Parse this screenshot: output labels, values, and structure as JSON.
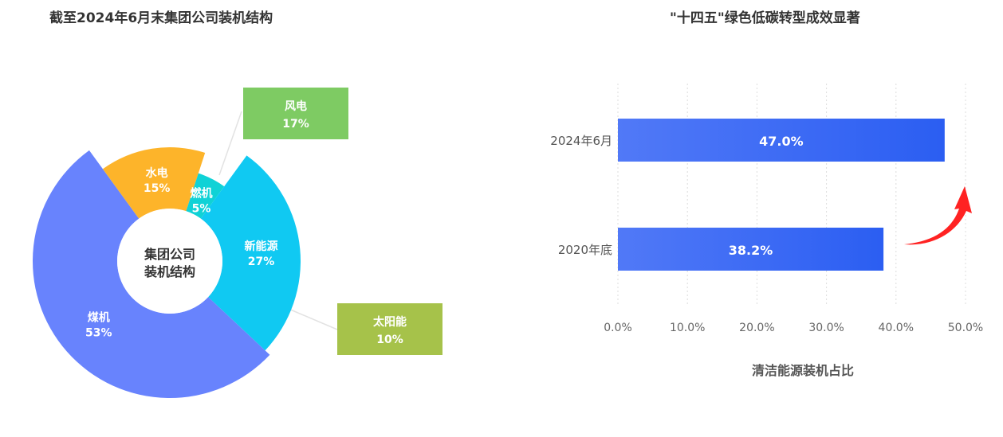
{
  "chart_data": [
    {
      "type": "pie",
      "title": "截至2024年6月末集团公司装机结构",
      "center_label": [
        "集团公司",
        "装机结构"
      ],
      "slices": [
        {
          "label": "新能源",
          "value": 27,
          "display": "27%",
          "color": "#10c9f2"
        },
        {
          "label": "煤机",
          "value": 53,
          "display": "53%",
          "color": "#6883fd"
        },
        {
          "label": "水电",
          "value": 15,
          "display": "15%",
          "color": "#fdb42a"
        },
        {
          "label": "燃机",
          "value": 5,
          "display": "5%",
          "color": "#10d2d6"
        }
      ],
      "callouts": [
        {
          "label": "风电",
          "value": 17,
          "display": "17%",
          "color": "#7ecb63"
        },
        {
          "label": "太阳能",
          "value": 10,
          "display": "10%",
          "color": "#a6c24a"
        }
      ]
    },
    {
      "type": "bar",
      "orientation": "horizontal",
      "title": "\"十四五\"绿色低碳转型成效显著",
      "xlabel": "清洁能源装机占比",
      "categories": [
        "2024年6月",
        "2020年底"
      ],
      "values": [
        47.0,
        38.2
      ],
      "value_labels": [
        "47.0%",
        "38.2%"
      ],
      "xlim": [
        0,
        50
      ],
      "xticks": [
        "0.0%",
        "10.0%",
        "20.0%",
        "30.0%",
        "40.0%",
        "50.0%"
      ],
      "grid": "vertical dashed",
      "bar_color_start": "#5179f7",
      "bar_color_end": "#2b5ef2",
      "annotation": "red-up-arrow",
      "arrow_color": "#ff2222"
    }
  ]
}
